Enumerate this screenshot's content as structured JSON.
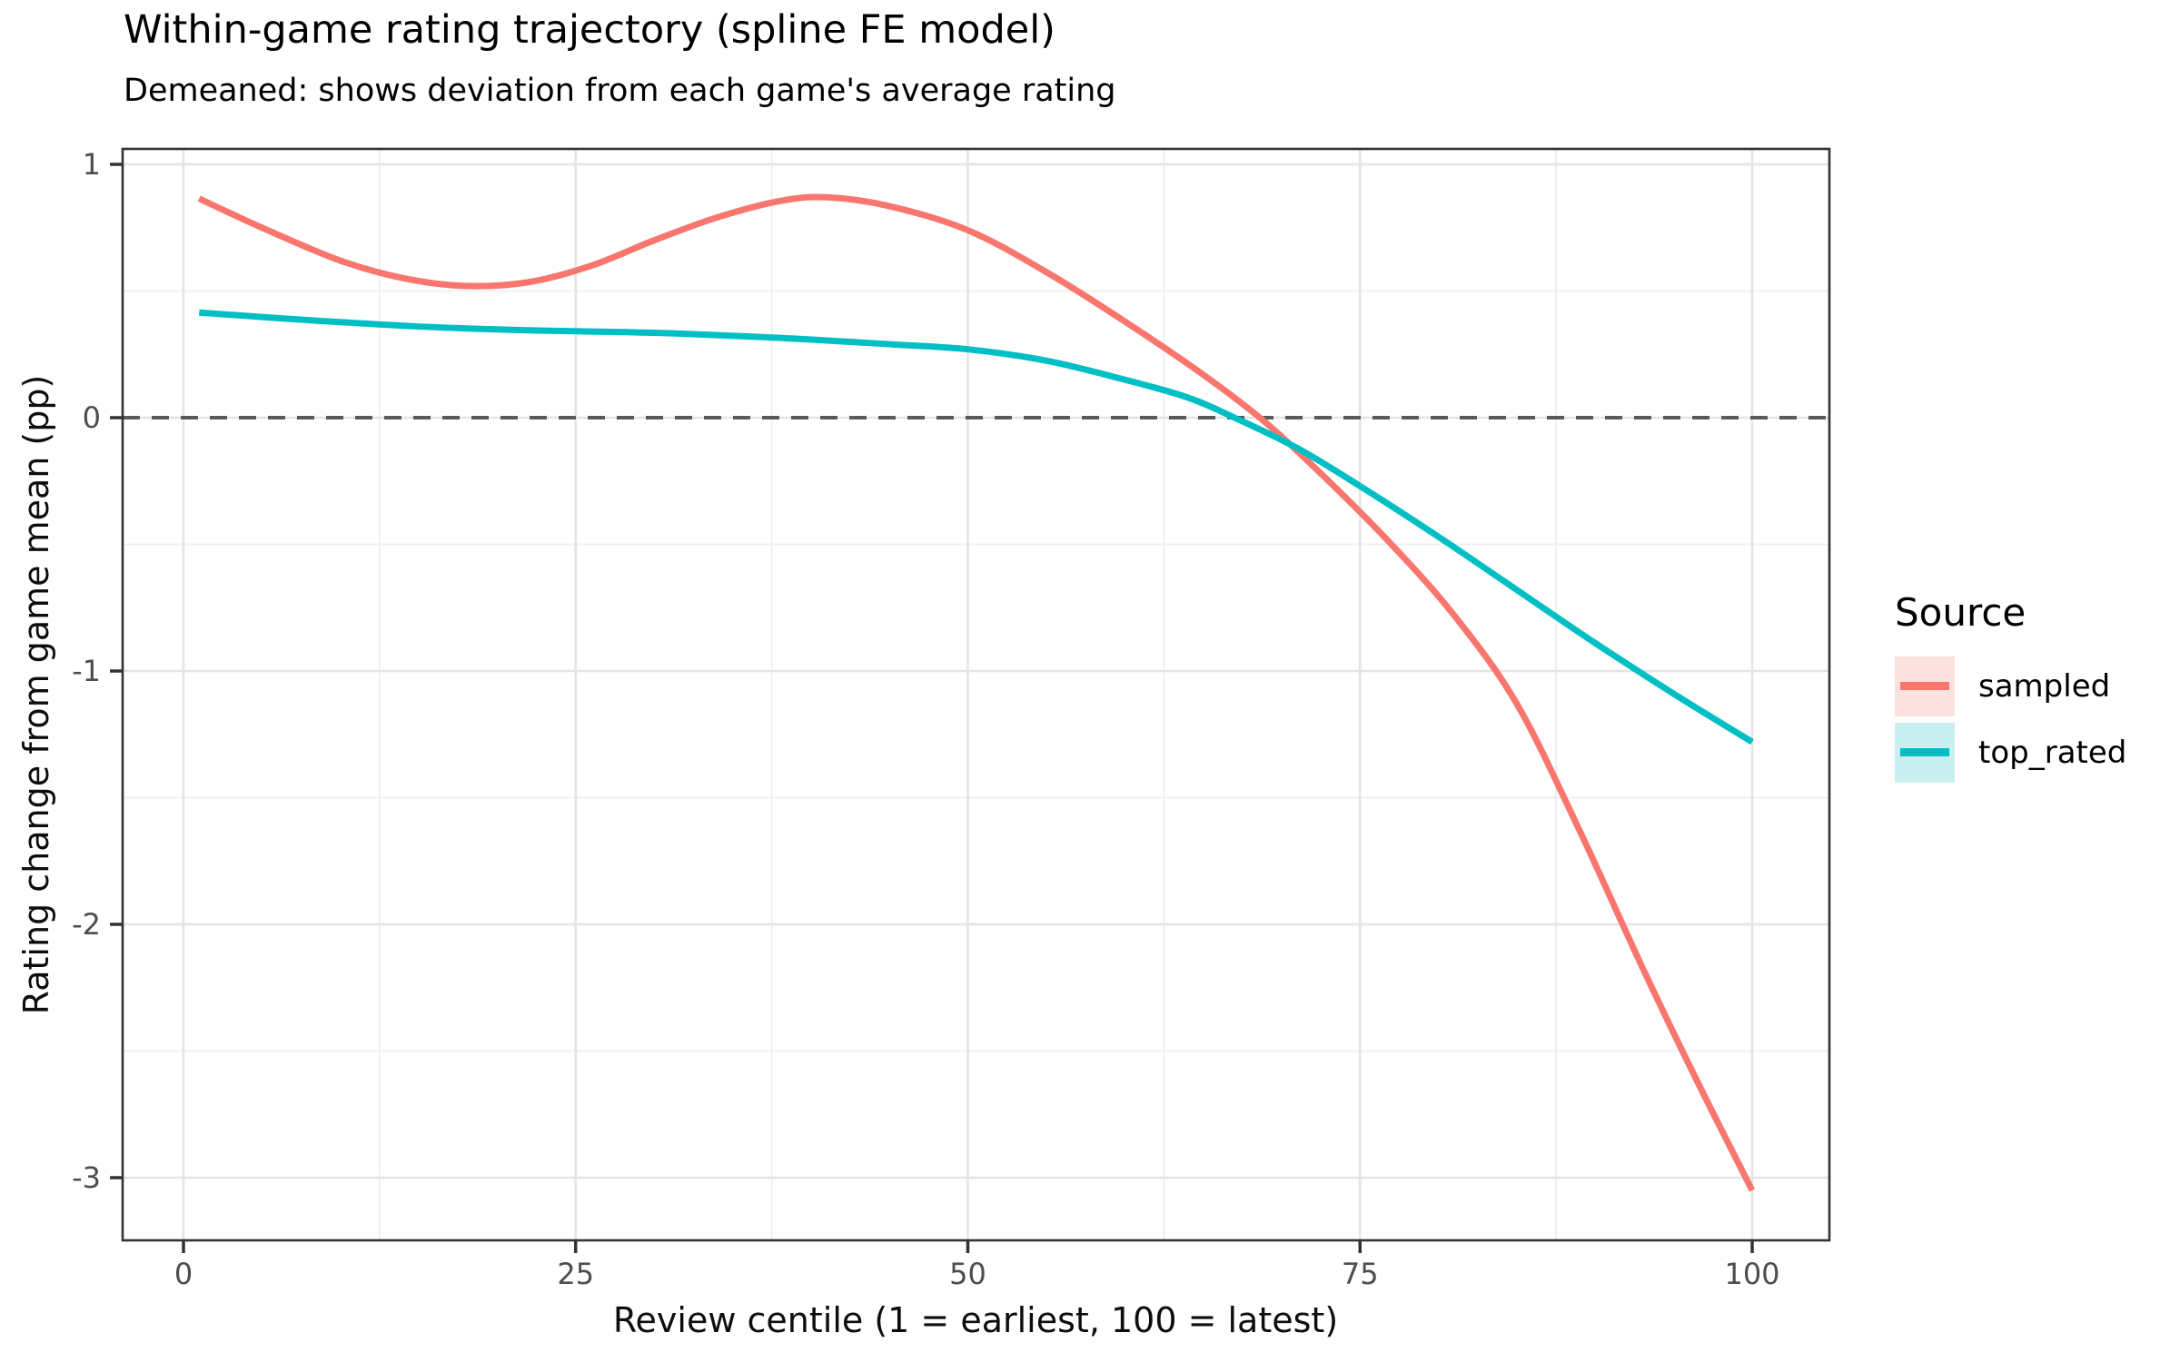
{
  "title": "Within-game rating trajectory (spline FE model)",
  "subtitle": "Demeaned: shows deviation from each game's average rating",
  "x_axis": {
    "title": "Review centile (1 = earliest, 100 = latest)",
    "tick_labels": [
      "0",
      "25",
      "50",
      "75",
      "100"
    ],
    "tick_values": [
      0,
      25,
      50,
      75,
      100
    ],
    "minor_values": [
      12.5,
      37.5,
      62.5,
      87.5
    ]
  },
  "y_axis": {
    "title": "Rating change from game mean (pp)",
    "tick_labels": [
      "1",
      "0",
      "-1",
      "-2",
      "-3"
    ],
    "tick_values": [
      1,
      0,
      -1,
      -2,
      -3
    ],
    "minor_values": [
      0.5,
      -0.5,
      -1.5,
      -2.5
    ]
  },
  "reference_line": {
    "y": 0,
    "style": "dashed",
    "color": "#595959"
  },
  "legend": {
    "title": "Source",
    "entries": [
      {
        "label": "sampled",
        "line_color": "#F8766D",
        "key_fill": "#FCE2DF"
      },
      {
        "label": "top_rated",
        "line_color": "#00BFC4",
        "key_fill": "#C9EFF1"
      }
    ]
  },
  "chart_data": {
    "type": "line",
    "xlabel": "Review centile (1 = earliest, 100 = latest)",
    "ylabel": "Rating change from game mean (pp)",
    "xlim": [
      0,
      100
    ],
    "ylim": [
      -3.2,
      1.0
    ],
    "grid": true,
    "legend_position": "right",
    "zero_line_dashed": true,
    "series": [
      {
        "name": "sampled",
        "color": "#F8766D",
        "points": [
          [
            1,
            0.865
          ],
          [
            5,
            0.75
          ],
          [
            10,
            0.62
          ],
          [
            14,
            0.551
          ],
          [
            18,
            0.52
          ],
          [
            22,
            0.535
          ],
          [
            26,
            0.6
          ],
          [
            30,
            0.7
          ],
          [
            34,
            0.79
          ],
          [
            38,
            0.855
          ],
          [
            41,
            0.87
          ],
          [
            45,
            0.835
          ],
          [
            50,
            0.74
          ],
          [
            55,
            0.575
          ],
          [
            60,
            0.38
          ],
          [
            65,
            0.17
          ],
          [
            69,
            -0.02
          ],
          [
            73,
            -0.25
          ],
          [
            77,
            -0.5
          ],
          [
            81,
            -0.78
          ],
          [
            85,
            -1.13
          ],
          [
            89,
            -1.63
          ],
          [
            93,
            -2.17
          ],
          [
            96.5,
            -2.62
          ],
          [
            100,
            -3.05
          ]
        ]
      },
      {
        "name": "top_rated",
        "color": "#00BFC4",
        "points": [
          [
            1,
            0.415
          ],
          [
            8,
            0.385
          ],
          [
            15,
            0.36
          ],
          [
            22,
            0.345
          ],
          [
            30,
            0.335
          ],
          [
            38,
            0.315
          ],
          [
            45,
            0.29
          ],
          [
            50,
            0.27
          ],
          [
            55,
            0.225
          ],
          [
            60,
            0.15
          ],
          [
            64,
            0.08
          ],
          [
            67,
            0.0
          ],
          [
            71,
            -0.12
          ],
          [
            75,
            -0.27
          ],
          [
            80,
            -0.47
          ],
          [
            85,
            -0.68
          ],
          [
            90,
            -0.89
          ],
          [
            95,
            -1.09
          ],
          [
            100,
            -1.28
          ]
        ]
      }
    ]
  }
}
